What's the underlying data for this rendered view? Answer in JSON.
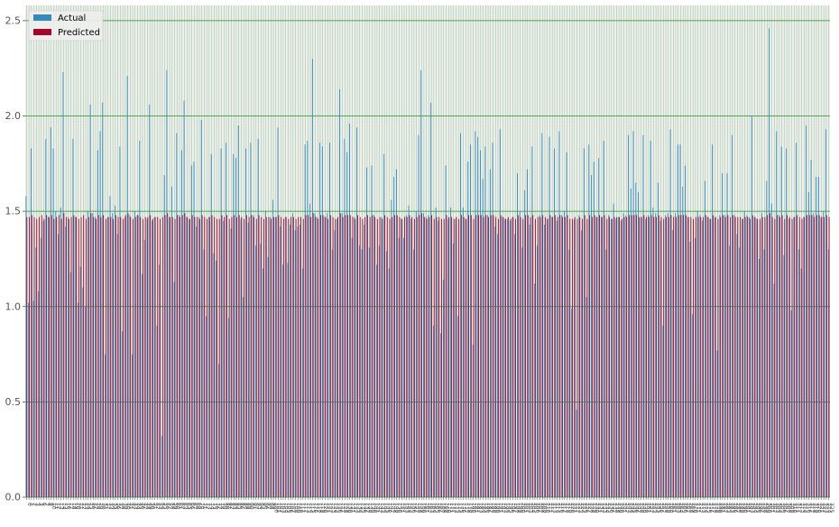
{
  "chart_data": {
    "type": "bar",
    "legend": {
      "position": "top-left",
      "entries": [
        {
          "label": "Actual",
          "color": "#348abd"
        },
        {
          "label": "Predicted",
          "color": "#a60628"
        }
      ]
    },
    "title": "",
    "xlabel": "",
    "ylabel": "",
    "ylim": [
      0,
      2.58
    ],
    "yticks": [
      "0.0",
      "0.5",
      "1.0",
      "1.5",
      "2.0",
      "2.5"
    ],
    "grid": true,
    "grid_color": "#008000",
    "background": "#eeeeee",
    "x_tick_labels": "rotated 90°, overlapping, illegible",
    "series": [
      {
        "name": "Actual",
        "color": "#348abd",
        "values": [
          1.58,
          1.02,
          1.83,
          1.03,
          1.31,
          1.08,
          1.36,
          1.45,
          1.88,
          1.47,
          1.94,
          1.83,
          1.5,
          1.38,
          1.52,
          2.23,
          1.42,
          1.47,
          1.18,
          1.88,
          1.47,
          1.02,
          1.21,
          1.1,
          1.0,
          1.5,
          2.06,
          1.49,
          1.47,
          1.82,
          1.92,
          2.07,
          0.75,
          1.47,
          1.58,
          1.49,
          1.53,
          1.38,
          1.84,
          0.87,
          1.47,
          2.21,
          1.48,
          0.75,
          1.5,
          1.48,
          1.87,
          1.17,
          1.35,
          1.46,
          2.06,
          1.45,
          1.47,
          0.9,
          1.22,
          0.32,
          1.69,
          2.24,
          1.47,
          1.63,
          1.13,
          1.91,
          1.48,
          1.82,
          2.08,
          1.47,
          1.46,
          1.74,
          1.76,
          1.42,
          1.47,
          1.98,
          1.3,
          0.95,
          1.47,
          1.8,
          1.28,
          1.24,
          0.7,
          1.83,
          1.45,
          1.86,
          0.94,
          1.41,
          1.8,
          1.78,
          1.95,
          1.46,
          1.05,
          1.83,
          1.44,
          1.86,
          1.48,
          1.32,
          1.88,
          1.33,
          1.2,
          1.5,
          1.26,
          1.47,
          1.56,
          1.47,
          1.94,
          1.42,
          1.22,
          1.47,
          1.23,
          1.43,
          1.49,
          1.4,
          1.42,
          1.43,
          1.2,
          1.85,
          1.87,
          1.54,
          2.3,
          1.49,
          1.47,
          1.86,
          1.84,
          1.47,
          1.49,
          1.86,
          1.3,
          1.4,
          1.46,
          2.14,
          1.49,
          1.88,
          1.81,
          1.96,
          1.36,
          1.47,
          1.94,
          1.32,
          1.3,
          1.43,
          1.73,
          1.31,
          1.74,
          1.48,
          1.22,
          1.32,
          1.47,
          1.8,
          1.29,
          1.2,
          1.56,
          1.68,
          1.72,
          1.36,
          1.46,
          1.36,
          1.48,
          1.53,
          1.46,
          1.3,
          1.5,
          1.9,
          2.24,
          1.49,
          1.47,
          1.48,
          2.07,
          0.9,
          1.52,
          1.45,
          0.86,
          1.14,
          1.74,
          1.46,
          1.52,
          1.33,
          1.46,
          0.95,
          1.91,
          1.52,
          1.46,
          1.76,
          1.85,
          0.8,
          1.92,
          1.89,
          1.82,
          1.67,
          1.84,
          1.48,
          1.72,
          1.86,
          1.42,
          1.38,
          1.93,
          1.47,
          1.46,
          1.46,
          1.45,
          1.47,
          1.38,
          1.7,
          1.5,
          1.31,
          1.61,
          1.72,
          1.43,
          1.84,
          1.12,
          1.32,
          1.48,
          1.91,
          1.43,
          1.46,
          1.89,
          1.47,
          1.83,
          1.45,
          1.92,
          1.48,
          1.5,
          1.81,
          1.3,
          0.99,
          1.46,
          0.46,
          1.48,
          1.4,
          1.83,
          1.05,
          1.85,
          1.69,
          1.76,
          1.47,
          1.78,
          1.47,
          1.87,
          1.3,
          1.48,
          1.46,
          1.54,
          1.46,
          1.47,
          1.45,
          1.49,
          1.48,
          1.9,
          1.62,
          1.92,
          1.65,
          1.6,
          1.47,
          1.9,
          1.46,
          1.48,
          1.87,
          1.52,
          1.49,
          1.65,
          1.45,
          0.9,
          1.48,
          1.49,
          1.93,
          1.4,
          1.49,
          1.85,
          1.85,
          1.63,
          1.74,
          1.47,
          1.34,
          0.96,
          1.36,
          1.5,
          1.48,
          1.45,
          1.66,
          1.47,
          1.46,
          1.85,
          1.47,
          0.77,
          1.48,
          1.7,
          1.48,
          1.7,
          1.32,
          1.9,
          1.48,
          1.38,
          1.31,
          1.46,
          1.5,
          1.48,
          1.47,
          2.0,
          1.47,
          1.46,
          1.25,
          1.49,
          1.3,
          1.66,
          2.46,
          1.54,
          1.12,
          1.92,
          1.48,
          1.84,
          1.27,
          1.83,
          1.46,
          0.98,
          1.47,
          1.86,
          1.3,
          1.2,
          1.47,
          1.95,
          1.6,
          1.77,
          1.49,
          1.68,
          1.68,
          1.47,
          1.5,
          1.93,
          1.3
        ]
      },
      {
        "name": "Predicted",
        "color": "#a60628",
        "values": [
          1.47,
          1.47,
          1.48,
          1.47,
          1.46,
          1.47,
          1.48,
          1.46,
          1.48,
          1.47,
          1.48,
          1.46,
          1.47,
          1.48,
          1.46,
          1.49,
          1.47,
          1.46,
          1.47,
          1.48,
          1.47,
          1.46,
          1.47,
          1.48,
          1.46,
          1.47,
          1.49,
          1.47,
          1.46,
          1.48,
          1.47,
          1.48,
          1.46,
          1.47,
          1.47,
          1.46,
          1.48,
          1.47,
          1.47,
          1.46,
          1.48,
          1.49,
          1.47,
          1.46,
          1.47,
          1.48,
          1.47,
          1.46,
          1.47,
          1.47,
          1.48,
          1.46,
          1.47,
          1.47,
          1.46,
          1.47,
          1.48,
          1.49,
          1.47,
          1.47,
          1.46,
          1.48,
          1.47,
          1.48,
          1.49,
          1.47,
          1.46,
          1.48,
          1.47,
          1.47,
          1.46,
          1.48,
          1.47,
          1.46,
          1.47,
          1.48,
          1.47,
          1.46,
          1.46,
          1.48,
          1.47,
          1.48,
          1.46,
          1.47,
          1.48,
          1.47,
          1.48,
          1.47,
          1.46,
          1.48,
          1.47,
          1.48,
          1.47,
          1.46,
          1.48,
          1.47,
          1.46,
          1.47,
          1.47,
          1.46,
          1.47,
          1.47,
          1.48,
          1.47,
          1.46,
          1.47,
          1.46,
          1.47,
          1.47,
          1.46,
          1.47,
          1.47,
          1.46,
          1.48,
          1.48,
          1.47,
          1.49,
          1.47,
          1.46,
          1.48,
          1.48,
          1.47,
          1.46,
          1.48,
          1.47,
          1.46,
          1.47,
          1.49,
          1.47,
          1.48,
          1.48,
          1.48,
          1.47,
          1.46,
          1.48,
          1.47,
          1.46,
          1.47,
          1.48,
          1.47,
          1.48,
          1.47,
          1.46,
          1.47,
          1.46,
          1.48,
          1.47,
          1.46,
          1.47,
          1.48,
          1.48,
          1.47,
          1.46,
          1.47,
          1.47,
          1.48,
          1.47,
          1.46,
          1.47,
          1.48,
          1.49,
          1.47,
          1.46,
          1.47,
          1.48,
          1.46,
          1.47,
          1.47,
          1.46,
          1.46,
          1.48,
          1.47,
          1.47,
          1.46,
          1.47,
          1.46,
          1.48,
          1.47,
          1.46,
          1.48,
          1.48,
          1.46,
          1.48,
          1.48,
          1.48,
          1.47,
          1.48,
          1.47,
          1.48,
          1.48,
          1.47,
          1.46,
          1.48,
          1.47,
          1.46,
          1.47,
          1.46,
          1.47,
          1.46,
          1.48,
          1.47,
          1.46,
          1.48,
          1.48,
          1.47,
          1.48,
          1.46,
          1.47,
          1.47,
          1.48,
          1.47,
          1.46,
          1.48,
          1.47,
          1.48,
          1.47,
          1.48,
          1.47,
          1.47,
          1.48,
          1.46,
          1.46,
          1.47,
          1.46,
          1.47,
          1.46,
          1.48,
          1.46,
          1.48,
          1.47,
          1.48,
          1.47,
          1.48,
          1.47,
          1.48,
          1.46,
          1.47,
          1.46,
          1.47,
          1.47,
          1.47,
          1.46,
          1.47,
          1.47,
          1.48,
          1.48,
          1.48,
          1.48,
          1.47,
          1.47,
          1.48,
          1.47,
          1.47,
          1.48,
          1.47,
          1.47,
          1.48,
          1.47,
          1.46,
          1.47,
          1.47,
          1.48,
          1.47,
          1.47,
          1.48,
          1.48,
          1.48,
          1.48,
          1.47,
          1.47,
          1.46,
          1.47,
          1.47,
          1.47,
          1.47,
          1.48,
          1.47,
          1.46,
          1.48,
          1.47,
          1.46,
          1.47,
          1.48,
          1.47,
          1.48,
          1.47,
          1.48,
          1.47,
          1.47,
          1.47,
          1.46,
          1.47,
          1.47,
          1.46,
          1.48,
          1.47,
          1.46,
          1.46,
          1.47,
          1.47,
          1.48,
          1.49,
          1.47,
          1.46,
          1.48,
          1.47,
          1.48,
          1.46,
          1.48,
          1.47,
          1.46,
          1.47,
          1.48,
          1.47,
          1.46,
          1.47,
          1.48,
          1.48,
          1.48,
          1.47,
          1.48,
          1.48,
          1.47,
          1.47,
          1.48,
          1.47
        ]
      }
    ]
  }
}
